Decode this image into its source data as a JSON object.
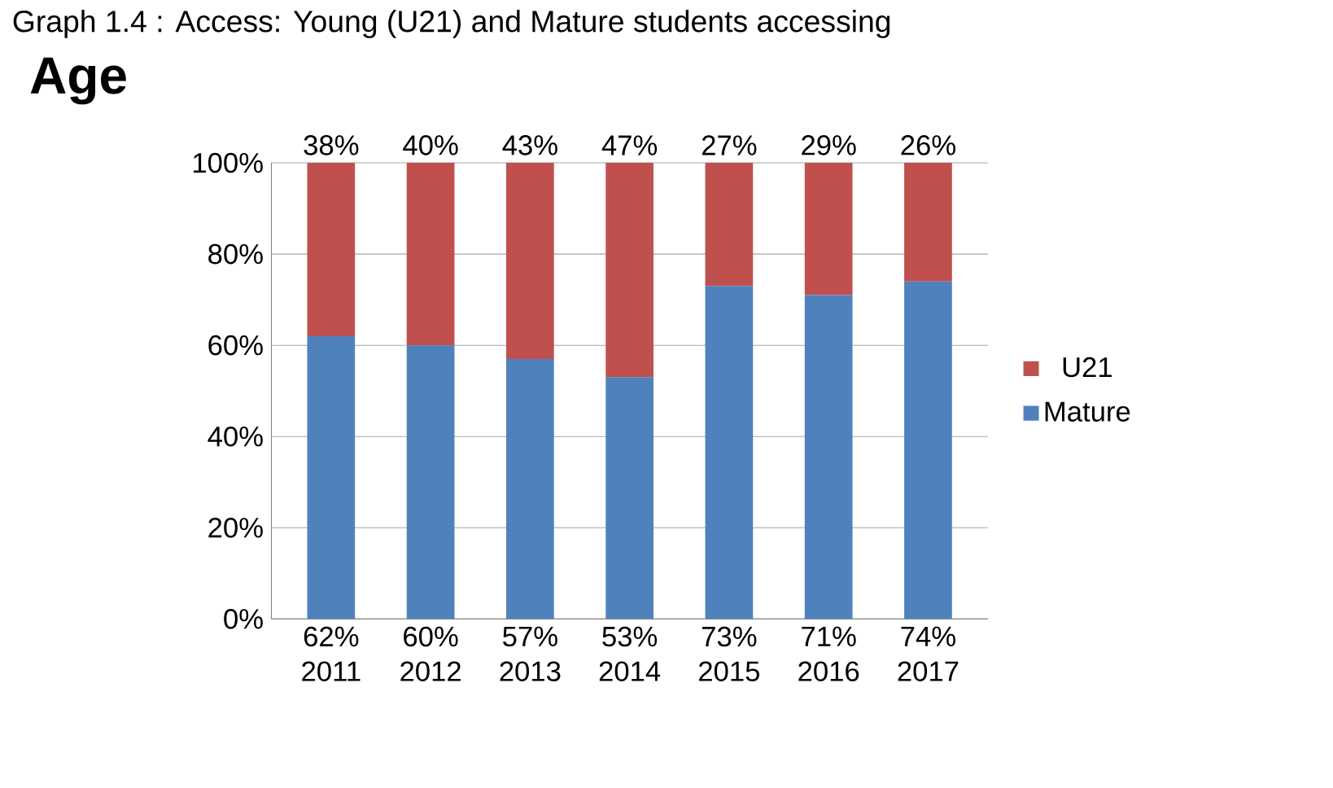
{
  "chart_data": {
    "type": "bar",
    "title": "Graph 1.4 : Access: Young (U21) and Mature students accessing",
    "subtitle": "Age",
    "categories": [
      "2011",
      "2012",
      "2013",
      "2014",
      "2015",
      "2016",
      "2017"
    ],
    "stacked": true,
    "series": [
      {
        "name": "Mature",
        "color": "#4f81bd",
        "values": [
          62,
          60,
          57,
          53,
          73,
          71,
          74
        ],
        "value_labels": [
          "62%",
          "60%",
          "57%",
          "53%",
          "73%",
          "71%",
          "74%"
        ]
      },
      {
        "name": "U21",
        "color": "#c0504d",
        "values": [
          38,
          40,
          43,
          47,
          27,
          29,
          26
        ],
        "value_labels": [
          "38%",
          "40%",
          "43%",
          "47%",
          "27%",
          "29%",
          "26%"
        ]
      }
    ],
    "ylim": [
      0,
      100
    ],
    "yticks": [
      {
        "value": 0,
        "label": "0%"
      },
      {
        "value": 20,
        "label": "20%"
      },
      {
        "value": 40,
        "label": "40%"
      },
      {
        "value": 60,
        "label": "60%"
      },
      {
        "value": 80,
        "label": "80%"
      },
      {
        "value": 100,
        "label": "100%"
      }
    ],
    "grid": "y",
    "legend": "right"
  }
}
